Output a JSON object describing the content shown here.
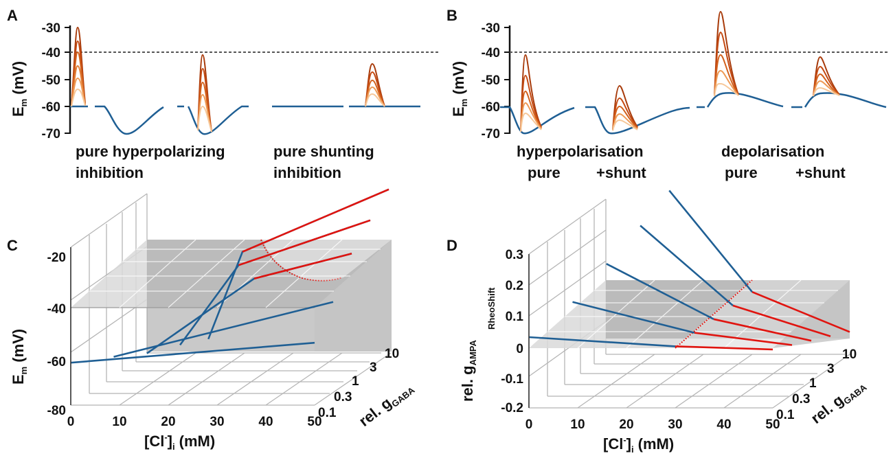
{
  "colors": {
    "blue": "#1f5f94",
    "red": "#e0140f",
    "pink": "#f2a3a8",
    "orange_dark": "#a83b0b",
    "orange_mid": "#d2611c",
    "orange_light": "#ee9a55",
    "orange_pale": "#f6c89a",
    "plane_dark": "#9d9d9d",
    "plane_light": "#d9d9d9",
    "threshold": "#555555"
  },
  "panels": {
    "A": {
      "label": "A"
    },
    "B": {
      "label": "B"
    },
    "C": {
      "label": "C"
    },
    "D": {
      "label": "D"
    }
  },
  "chart_data": [
    {
      "panel": "A",
      "type": "line",
      "ylabel": "E",
      "ylabel_sub": "m",
      "ylabel_unit": "(mV)",
      "yticks": [
        "-30",
        "-40",
        "-50",
        "-60",
        "-70"
      ],
      "ylim": [
        -70,
        -30
      ],
      "threshold_mV": -40,
      "baseline_mV": -60,
      "traces": [
        {
          "name": "pure hyperpolarizing inhibition",
          "ipsp_min_mV": -70,
          "epsp_peaks_mV": [
            -30,
            -34,
            -40,
            -45,
            -50,
            -54
          ],
          "epsp_variant": "during IPSP"
        },
        {
          "name": "pure shunting inhibition",
          "ipsp_min_mV": -60,
          "epsp_peaks_mV": [
            -44,
            -47,
            -50,
            -53,
            -56
          ],
          "epsp_variant": "after shunt"
        }
      ],
      "captions": [
        "pure hyperpolarizing",
        "inhibition",
        "pure shunting",
        "inhibition"
      ]
    },
    {
      "panel": "B",
      "type": "line",
      "ylabel": "E",
      "ylabel_sub": "m",
      "ylabel_unit": "(mV)",
      "yticks": [
        "-30",
        "-40",
        "-50",
        "-60",
        "-70"
      ],
      "ylim": [
        -70,
        -30
      ],
      "threshold_mV": -40,
      "traces": [
        {
          "name": "hyperpolarisation pure",
          "ipsp_extreme_mV": -70,
          "epsp_peaks_mV": [
            -41,
            -48,
            -54,
            -58,
            -62
          ]
        },
        {
          "name": "hyperpolarisation +shunt",
          "ipsp_extreme_mV": -70,
          "epsp_peaks_mV": [
            -52,
            -57,
            -60,
            -63,
            -65
          ]
        },
        {
          "name": "depolarisation pure",
          "ipsp_extreme_mV": -55,
          "epsp_peaks_mV": [
            -25,
            -33,
            -41,
            -47,
            -52
          ]
        },
        {
          "name": "depolarisation +shunt",
          "ipsp_extreme_mV": -55,
          "epsp_peaks_mV": [
            -41,
            -46,
            -49,
            -52,
            -55
          ]
        }
      ],
      "captions": [
        "hyperpolarisation",
        "pure",
        "+shunt",
        "depolarisation",
        "pure",
        "+shunt"
      ]
    },
    {
      "panel": "C",
      "type": "line",
      "title": "",
      "xlabel": "[Cl",
      "xlabel_sup": "-",
      "xlabel_sub": "i",
      "xlabel_unit": "(mM)",
      "x_ticks": [
        "0",
        "10",
        "20",
        "30",
        "40",
        "50"
      ],
      "xlim": [
        0,
        50
      ],
      "ylabel": "E",
      "ylabel_sub": "m",
      "ylabel_unit": "(mV)",
      "y_ticks": [
        "-20",
        "-40",
        "-60",
        "-80"
      ],
      "ylim": [
        -80,
        -20
      ],
      "zlabel": "rel. g",
      "zlabel_sub": "GABA",
      "z_ticks": [
        "0.1",
        "0.3",
        "1",
        "3",
        "10"
      ],
      "threshold_plane_mV": -40,
      "series": [
        {
          "name": "0.1",
          "points": [
            [
              0,
              -63
            ],
            [
              50,
              -55
            ]
          ]
        },
        {
          "name": "0.3",
          "points": [
            [
              5,
              -66
            ],
            [
              50,
              -44
            ]
          ]
        },
        {
          "name": "1",
          "points": [
            [
              8,
              -70
            ],
            [
              30,
              -40
            ],
            [
              50,
              -30
            ]
          ]
        },
        {
          "name": "3",
          "points": [
            [
              11,
              -72
            ],
            [
              23,
              -40
            ],
            [
              50,
              -22
            ]
          ]
        },
        {
          "name": "10",
          "points": [
            [
              13,
              -75
            ],
            [
              20,
              -40
            ],
            [
              50,
              -15
            ]
          ]
        }
      ]
    },
    {
      "panel": "D",
      "type": "line",
      "xlabel": "[Cl",
      "xlabel_sup": "-",
      "xlabel_sub": "i",
      "xlabel_unit": "(mM)",
      "x_ticks": [
        "0",
        "10",
        "20",
        "30",
        "40",
        "50"
      ],
      "xlim": [
        0,
        50
      ],
      "ylabel": "rel. g",
      "ylabel_sub": "AMPA",
      "ylabel_sup": "RheoShift",
      "y_ticks": [
        "0.3",
        "0.2",
        "0.1",
        "0",
        "-0.1",
        "-0.2"
      ],
      "ylim": [
        -0.2,
        0.3
      ],
      "zlabel": "rel. g",
      "zlabel_sub": "GABA",
      "z_ticks": [
        "0.1",
        "0.3",
        "1",
        "3",
        "10"
      ],
      "series": [
        {
          "name": "0.1",
          "points": [
            [
              0,
              0.03
            ],
            [
              30,
              0
            ],
            [
              50,
              -0.01
            ]
          ]
        },
        {
          "name": "0.3",
          "points": [
            [
              5,
              0.1
            ],
            [
              30,
              0
            ],
            [
              50,
              -0.04
            ]
          ]
        },
        {
          "name": "1",
          "points": [
            [
              8,
              0.18
            ],
            [
              30,
              0
            ],
            [
              50,
              -0.07
            ]
          ]
        },
        {
          "name": "3",
          "points": [
            [
              11,
              0.26
            ],
            [
              30,
              0
            ],
            [
              50,
              -0.1
            ]
          ]
        },
        {
          "name": "10",
          "points": [
            [
              13,
              0.33
            ],
            [
              30,
              0
            ],
            [
              50,
              -0.13
            ]
          ]
        }
      ]
    }
  ]
}
